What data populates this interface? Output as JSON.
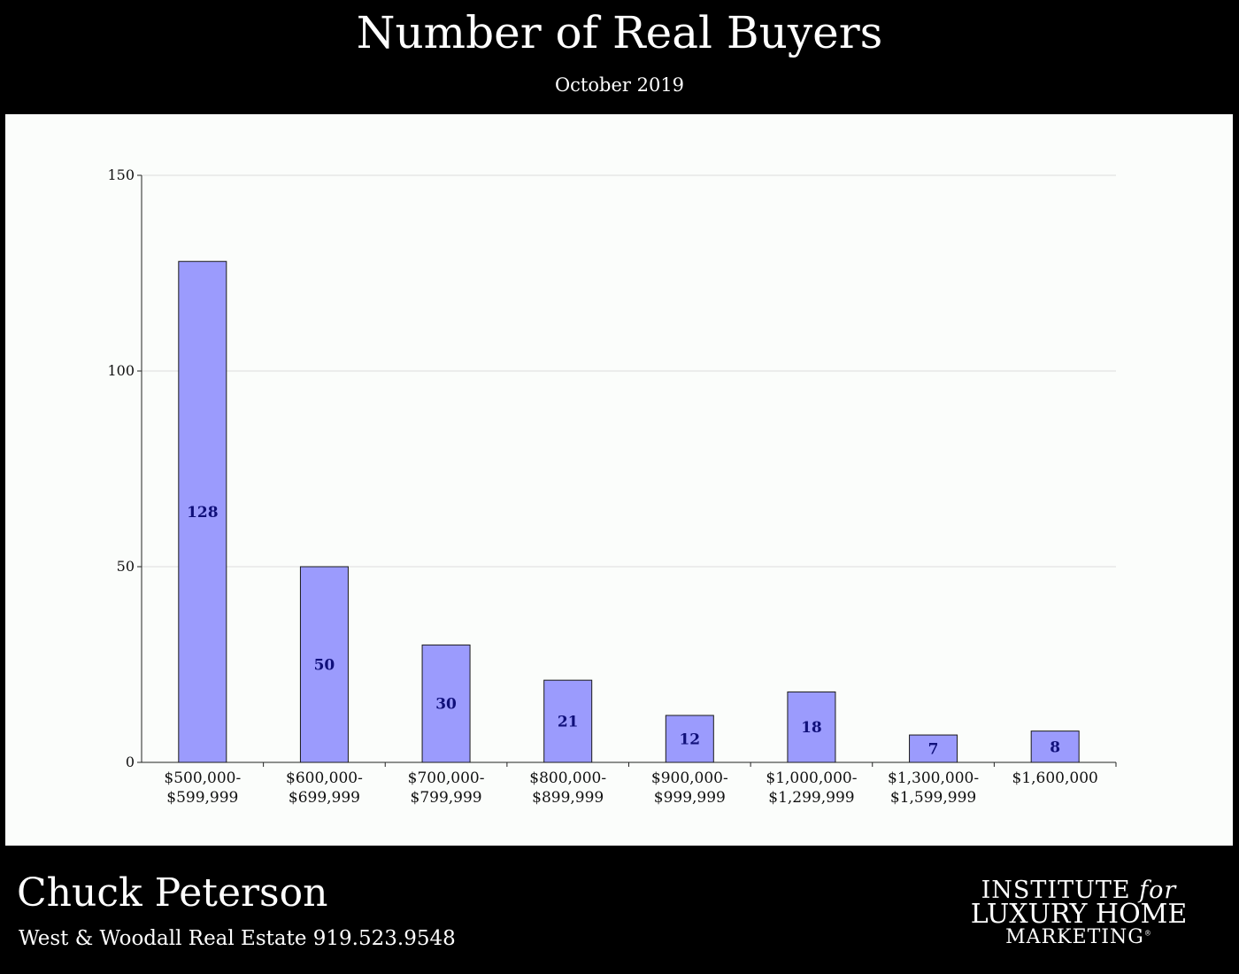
{
  "header": {
    "title": "Number of Real Buyers",
    "subtitle": "October 2019"
  },
  "chart_data": {
    "type": "bar",
    "title": "Number of Real Buyers",
    "subtitle": "October 2019",
    "xlabel": "",
    "ylabel": "",
    "categories": [
      [
        "$500,000-",
        "$599,999"
      ],
      [
        "$600,000-",
        "$699,999"
      ],
      [
        "$700,000-",
        "$799,999"
      ],
      [
        "$800,000-",
        "$899,999"
      ],
      [
        "$900,000-",
        "$999,999"
      ],
      [
        "$1,000,000-",
        "$1,299,999"
      ],
      [
        "$1,300,000-",
        "$1,599,999"
      ],
      [
        "$1,600,000"
      ]
    ],
    "values": [
      128,
      50,
      30,
      21,
      12,
      18,
      7,
      8
    ],
    "ylim": [
      0,
      150
    ],
    "yticks": [
      0,
      50,
      100,
      150
    ],
    "grid": true,
    "legend": "none",
    "colors": {
      "bar_fill": "#9b9bfd",
      "bar_stroke": "#1a1a1a",
      "data_label": "#10107a",
      "grid": "#dddddd",
      "axis": "#222222",
      "tick_label": "#111111"
    }
  },
  "footer": {
    "agent_name": "Chuck Peterson",
    "agent_info": "West & Woodall Real Estate 919.523.9548",
    "logo": {
      "line1_word": "INSTITUTE",
      "line1_italic": "for",
      "line2": "LUXURY HOME",
      "line3": "MARKETING",
      "registered": "®"
    }
  }
}
